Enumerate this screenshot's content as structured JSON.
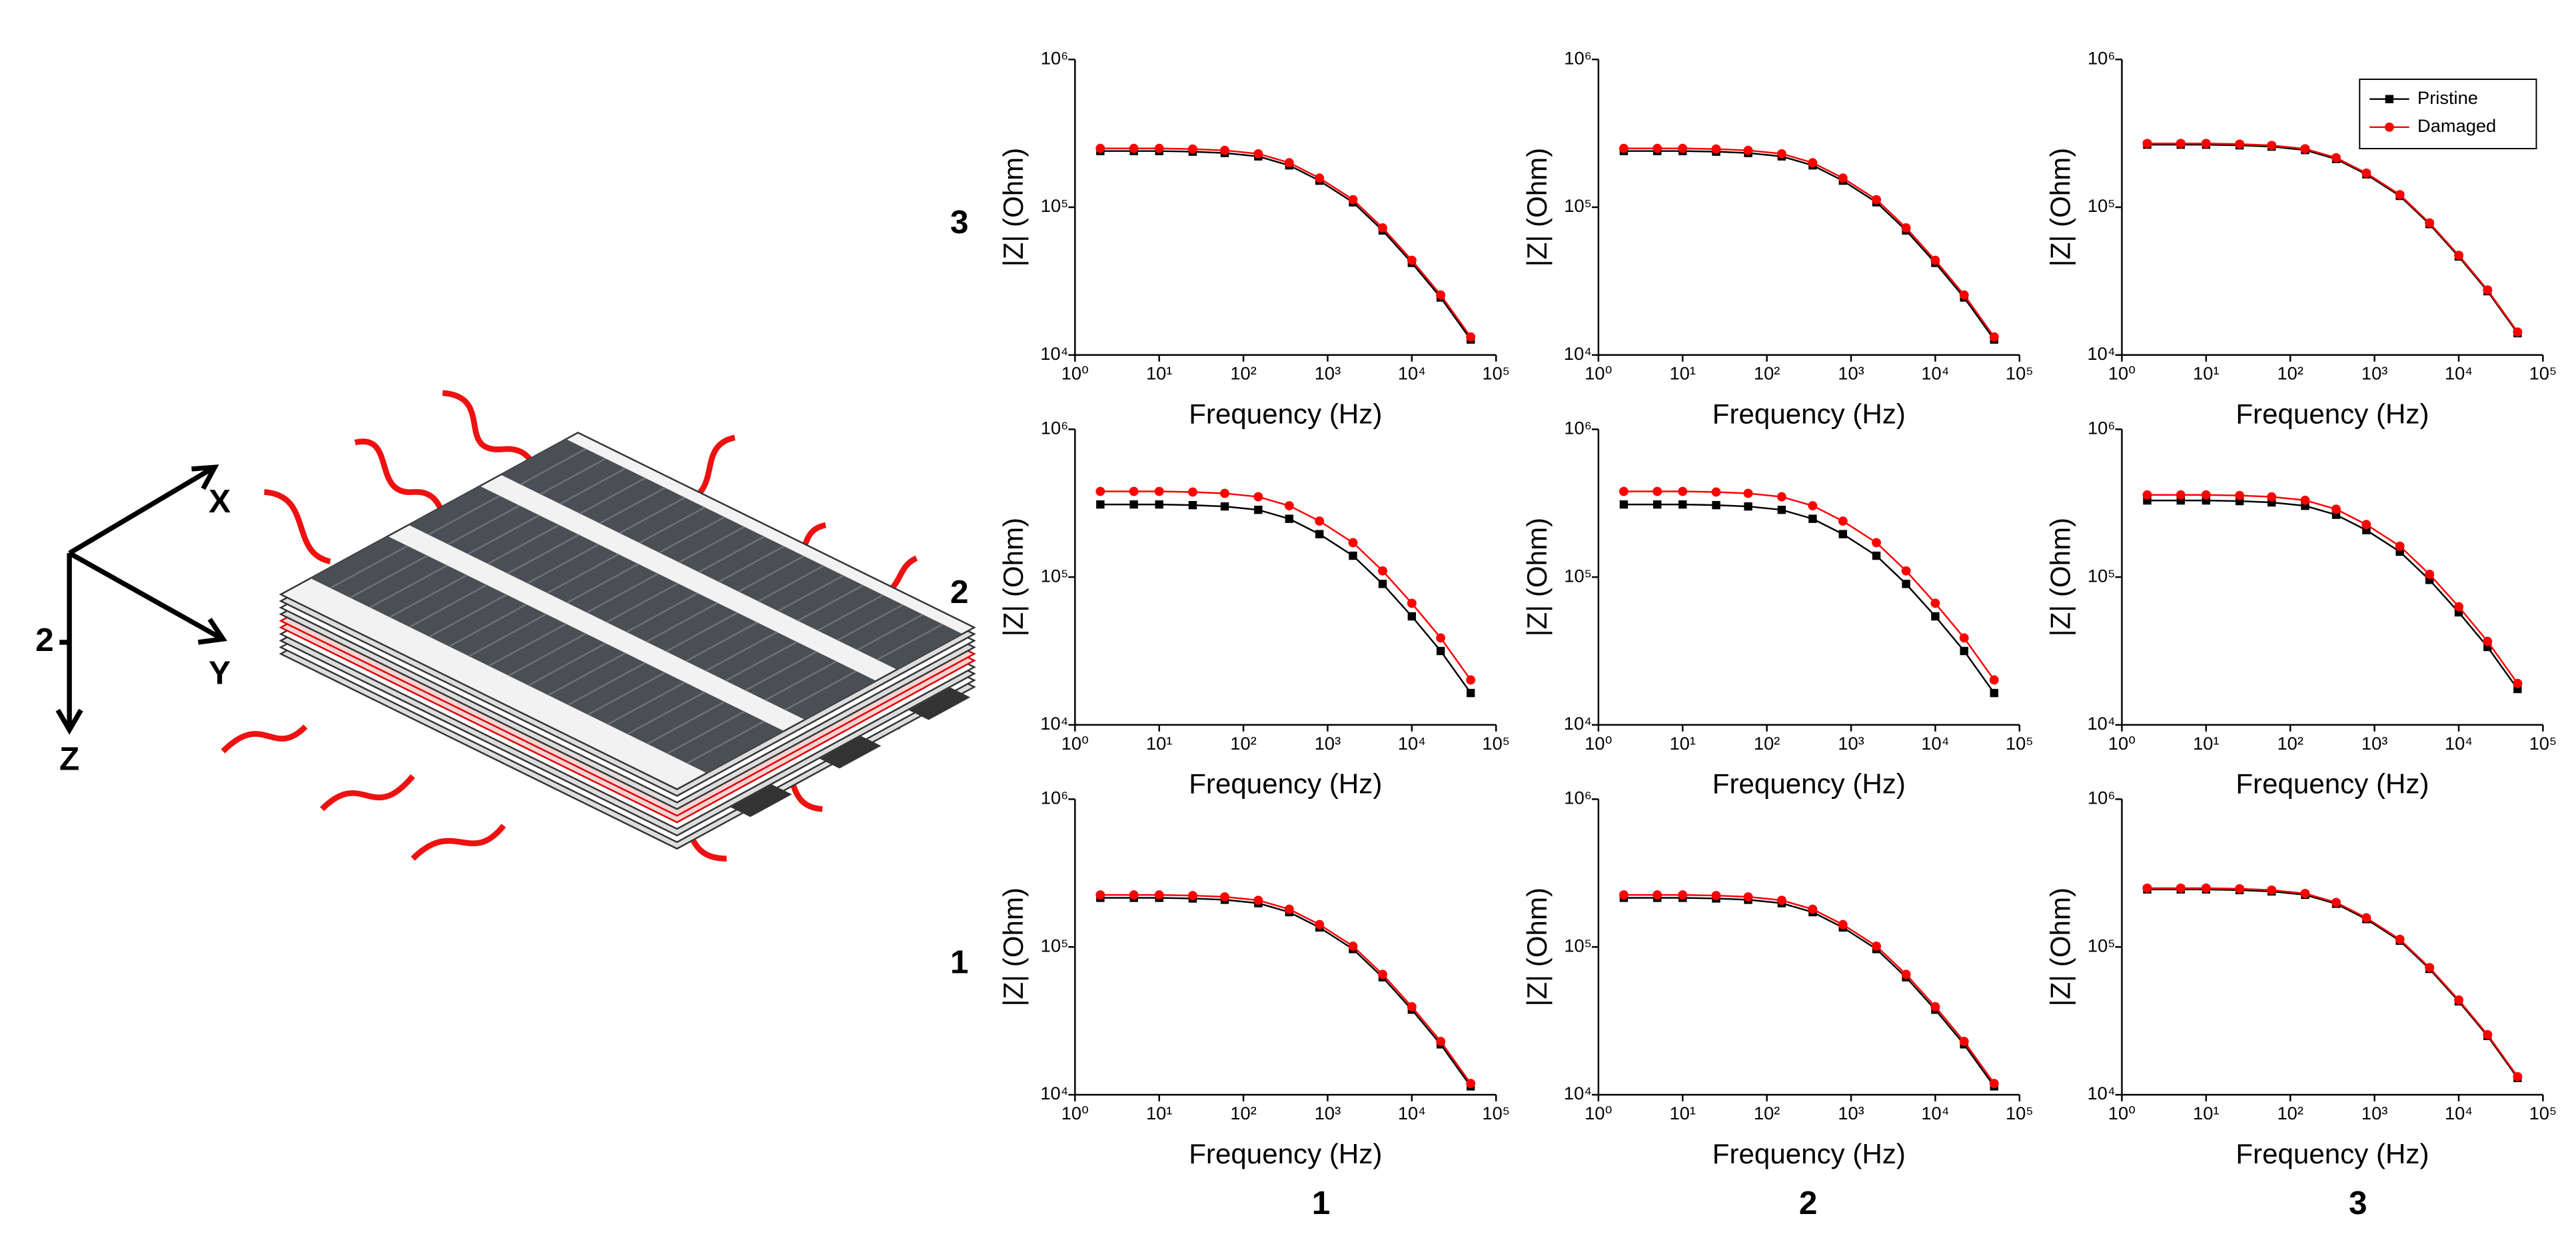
{
  "diagram": {
    "x_axis": "X",
    "y_axis": "Y",
    "z_axis": "Z",
    "marker": "2"
  },
  "row_labels": [
    "3",
    "2",
    "1"
  ],
  "column_labels": [
    "1",
    "2",
    "3"
  ],
  "chart_data": [
    {
      "type": "line",
      "xlabel": "Frequency (Hz)",
      "ylabel": "|Z| (Ohm)",
      "xscale": "log",
      "yscale": "log",
      "xlim": [
        1,
        100000
      ],
      "ylim": [
        10000,
        1000000
      ],
      "xticks": [
        {
          "value": 1,
          "label": "10⁰"
        },
        {
          "value": 10,
          "label": "10¹"
        },
        {
          "value": 100,
          "label": "10²"
        },
        {
          "value": 1000,
          "label": "10³"
        },
        {
          "value": 10000,
          "label": "10⁴"
        },
        {
          "value": 100000,
          "label": "10⁵"
        }
      ],
      "yticks": [
        {
          "value": 10000,
          "label": "10⁴"
        },
        {
          "value": 100000,
          "label": "10⁵"
        },
        {
          "value": 1000000,
          "label": "10⁶"
        }
      ],
      "x": [
        2,
        5,
        10,
        25,
        60,
        150,
        350,
        800,
        2000,
        4500,
        10000,
        22000,
        50000
      ],
      "series": [
        {
          "color": "#000000",
          "marker": "square",
          "values": [
            240000,
            240000,
            240000,
            237600,
            232800,
            220800,
            192000,
            151200,
            108000,
            69600,
            42000,
            24480,
            12720
          ]
        },
        {
          "color": "#ff0000",
          "marker": "circle",
          "values": [
            250000,
            250000,
            250000,
            247500,
            242500,
            230000,
            200000,
            157500,
            112500,
            72500,
            43750,
            25500,
            13250
          ]
        }
      ]
    },
    {
      "type": "line",
      "xlabel": "Frequency (Hz)",
      "ylabel": "|Z| (Ohm)",
      "xscale": "log",
      "yscale": "log",
      "xlim": [
        1,
        100000
      ],
      "ylim": [
        10000,
        1000000
      ],
      "xticks": [
        {
          "value": 1,
          "label": "10⁰"
        },
        {
          "value": 10,
          "label": "10¹"
        },
        {
          "value": 100,
          "label": "10²"
        },
        {
          "value": 1000,
          "label": "10³"
        },
        {
          "value": 10000,
          "label": "10⁴"
        },
        {
          "value": 100000,
          "label": "10⁵"
        }
      ],
      "yticks": [
        {
          "value": 10000,
          "label": "10⁴"
        },
        {
          "value": 100000,
          "label": "10⁵"
        },
        {
          "value": 1000000,
          "label": "10⁶"
        }
      ],
      "x": [
        2,
        5,
        10,
        25,
        60,
        150,
        350,
        800,
        2000,
        4500,
        10000,
        22000,
        50000
      ],
      "series": [
        {
          "color": "#000000",
          "marker": "square",
          "values": [
            240000,
            240000,
            240000,
            237600,
            232800,
            220800,
            192000,
            151200,
            108000,
            69600,
            42000,
            24480,
            12720
          ]
        },
        {
          "color": "#ff0000",
          "marker": "circle",
          "values": [
            250000,
            250000,
            250000,
            247500,
            242500,
            230000,
            200000,
            157500,
            112500,
            72500,
            43750,
            25500,
            13250
          ]
        }
      ]
    },
    {
      "type": "line",
      "xlabel": "Frequency (Hz)",
      "ylabel": "|Z| (Ohm)",
      "xscale": "log",
      "yscale": "log",
      "xlim": [
        1,
        100000
      ],
      "ylim": [
        10000,
        1000000
      ],
      "legend": "upper right",
      "xticks": [
        {
          "value": 1,
          "label": "10⁰"
        },
        {
          "value": 10,
          "label": "10¹"
        },
        {
          "value": 100,
          "label": "10²"
        },
        {
          "value": 1000,
          "label": "10³"
        },
        {
          "value": 10000,
          "label": "10⁴"
        },
        {
          "value": 100000,
          "label": "10⁵"
        }
      ],
      "yticks": [
        {
          "value": 10000,
          "label": "10⁴"
        },
        {
          "value": 100000,
          "label": "10⁵"
        },
        {
          "value": 1000000,
          "label": "10⁶"
        }
      ],
      "x": [
        2,
        5,
        10,
        25,
        60,
        150,
        350,
        800,
        2000,
        4500,
        10000,
        22000,
        50000
      ],
      "series": [
        {
          "name": "Pristine",
          "color": "#000000",
          "marker": "square",
          "values": [
            265000,
            265000,
            265000,
            262350,
            257050,
            243800,
            212000,
            166950,
            119250,
            76850,
            46375,
            27030,
            14045
          ]
        },
        {
          "name": "Damaged",
          "color": "#ff0000",
          "marker": "circle",
          "values": [
            270000,
            270000,
            270000,
            267300,
            261900,
            248400,
            216000,
            170100,
            121500,
            78300,
            47250,
            27540,
            14310
          ]
        }
      ]
    },
    {
      "type": "line",
      "xlabel": "Frequency (Hz)",
      "ylabel": "|Z| (Ohm)",
      "xscale": "log",
      "yscale": "log",
      "xlim": [
        1,
        100000
      ],
      "ylim": [
        10000,
        1000000
      ],
      "xticks": [
        {
          "value": 1,
          "label": "10⁰"
        },
        {
          "value": 10,
          "label": "10¹"
        },
        {
          "value": 100,
          "label": "10²"
        },
        {
          "value": 1000,
          "label": "10³"
        },
        {
          "value": 10000,
          "label": "10⁴"
        },
        {
          "value": 100000,
          "label": "10⁵"
        }
      ],
      "yticks": [
        {
          "value": 10000,
          "label": "10⁴"
        },
        {
          "value": 100000,
          "label": "10⁵"
        },
        {
          "value": 1000000,
          "label": "10⁶"
        }
      ],
      "x": [
        2,
        5,
        10,
        25,
        60,
        150,
        350,
        800,
        2000,
        4500,
        10000,
        22000,
        50000
      ],
      "series": [
        {
          "color": "#000000",
          "marker": "square",
          "values": [
            310000,
            310000,
            310000,
            306900,
            300700,
            285200,
            248000,
            195300,
            139500,
            89900,
            54250,
            31620,
            16430
          ]
        },
        {
          "color": "#ff0000",
          "marker": "circle",
          "values": [
            380000,
            380000,
            380000,
            376200,
            368600,
            349600,
            304000,
            239400,
            171000,
            110200,
            66500,
            38760,
            20140
          ]
        }
      ]
    },
    {
      "type": "line",
      "xlabel": "Frequency (Hz)",
      "ylabel": "|Z| (Ohm)",
      "xscale": "log",
      "yscale": "log",
      "xlim": [
        1,
        100000
      ],
      "ylim": [
        10000,
        1000000
      ],
      "xticks": [
        {
          "value": 1,
          "label": "10⁰"
        },
        {
          "value": 10,
          "label": "10¹"
        },
        {
          "value": 100,
          "label": "10²"
        },
        {
          "value": 1000,
          "label": "10³"
        },
        {
          "value": 10000,
          "label": "10⁴"
        },
        {
          "value": 100000,
          "label": "10⁵"
        }
      ],
      "yticks": [
        {
          "value": 10000,
          "label": "10⁴"
        },
        {
          "value": 100000,
          "label": "10⁵"
        },
        {
          "value": 1000000,
          "label": "10⁶"
        }
      ],
      "x": [
        2,
        5,
        10,
        25,
        60,
        150,
        350,
        800,
        2000,
        4500,
        10000,
        22000,
        50000
      ],
      "series": [
        {
          "color": "#000000",
          "marker": "square",
          "values": [
            310000,
            310000,
            310000,
            306900,
            300700,
            285200,
            248000,
            195300,
            139500,
            89900,
            54250,
            31620,
            16430
          ]
        },
        {
          "color": "#ff0000",
          "marker": "circle",
          "values": [
            380000,
            380000,
            380000,
            376200,
            368600,
            349600,
            304000,
            239400,
            171000,
            110200,
            66500,
            38760,
            20140
          ]
        }
      ]
    },
    {
      "type": "line",
      "xlabel": "Frequency (Hz)",
      "ylabel": "|Z| (Ohm)",
      "xscale": "log",
      "yscale": "log",
      "xlim": [
        1,
        100000
      ],
      "ylim": [
        10000,
        1000000
      ],
      "xticks": [
        {
          "value": 1,
          "label": "10⁰"
        },
        {
          "value": 10,
          "label": "10¹"
        },
        {
          "value": 100,
          "label": "10²"
        },
        {
          "value": 1000,
          "label": "10³"
        },
        {
          "value": 10000,
          "label": "10⁴"
        },
        {
          "value": 100000,
          "label": "10⁵"
        }
      ],
      "yticks": [
        {
          "value": 10000,
          "label": "10⁴"
        },
        {
          "value": 100000,
          "label": "10⁵"
        },
        {
          "value": 1000000,
          "label": "10⁶"
        }
      ],
      "x": [
        2,
        5,
        10,
        25,
        60,
        150,
        350,
        800,
        2000,
        4500,
        10000,
        22000,
        50000
      ],
      "series": [
        {
          "color": "#000000",
          "marker": "square",
          "values": [
            330000,
            330000,
            330000,
            326700,
            320100,
            303600,
            264000,
            207900,
            148500,
            95700,
            57750,
            33660,
            17490
          ]
        },
        {
          "color": "#ff0000",
          "marker": "circle",
          "values": [
            360000,
            360000,
            360000,
            356400,
            349200,
            331200,
            288000,
            226800,
            162000,
            104400,
            63000,
            36720,
            19080
          ]
        }
      ]
    },
    {
      "type": "line",
      "xlabel": "Frequency (Hz)",
      "ylabel": "|Z| (Ohm)",
      "xscale": "log",
      "yscale": "log",
      "xlim": [
        1,
        100000
      ],
      "ylim": [
        10000,
        1000000
      ],
      "xticks": [
        {
          "value": 1,
          "label": "10⁰"
        },
        {
          "value": 10,
          "label": "10¹"
        },
        {
          "value": 100,
          "label": "10²"
        },
        {
          "value": 1000,
          "label": "10³"
        },
        {
          "value": 10000,
          "label": "10⁴"
        },
        {
          "value": 100000,
          "label": "10⁵"
        }
      ],
      "yticks": [
        {
          "value": 10000,
          "label": "10⁴"
        },
        {
          "value": 100000,
          "label": "10⁵"
        },
        {
          "value": 1000000,
          "label": "10⁶"
        }
      ],
      "x": [
        2,
        5,
        10,
        25,
        60,
        150,
        350,
        800,
        2000,
        4500,
        10000,
        22000,
        50000
      ],
      "series": [
        {
          "color": "#000000",
          "marker": "square",
          "values": [
            215000,
            215000,
            215000,
            212850,
            208550,
            197800,
            172000,
            135450,
            96750,
            62350,
            37625,
            21930,
            11395
          ]
        },
        {
          "color": "#ff0000",
          "marker": "circle",
          "values": [
            225000,
            225000,
            225000,
            222750,
            218250,
            207000,
            180000,
            141750,
            101250,
            65250,
            39375,
            22950,
            11925
          ]
        }
      ]
    },
    {
      "type": "line",
      "xlabel": "Frequency (Hz)",
      "ylabel": "|Z| (Ohm)",
      "xscale": "log",
      "yscale": "log",
      "xlim": [
        1,
        100000
      ],
      "ylim": [
        10000,
        1000000
      ],
      "xticks": [
        {
          "value": 1,
          "label": "10⁰"
        },
        {
          "value": 10,
          "label": "10¹"
        },
        {
          "value": 100,
          "label": "10²"
        },
        {
          "value": 1000,
          "label": "10³"
        },
        {
          "value": 10000,
          "label": "10⁴"
        },
        {
          "value": 100000,
          "label": "10⁵"
        }
      ],
      "yticks": [
        {
          "value": 10000,
          "label": "10⁴"
        },
        {
          "value": 100000,
          "label": "10⁵"
        },
        {
          "value": 1000000,
          "label": "10⁶"
        }
      ],
      "x": [
        2,
        5,
        10,
        25,
        60,
        150,
        350,
        800,
        2000,
        4500,
        10000,
        22000,
        50000
      ],
      "series": [
        {
          "color": "#000000",
          "marker": "square",
          "values": [
            215000,
            215000,
            215000,
            212850,
            208550,
            197800,
            172000,
            135450,
            96750,
            62350,
            37625,
            21930,
            11395
          ]
        },
        {
          "color": "#ff0000",
          "marker": "circle",
          "values": [
            225000,
            225000,
            225000,
            222750,
            218250,
            207000,
            180000,
            141750,
            101250,
            65250,
            39375,
            22950,
            11925
          ]
        }
      ]
    },
    {
      "type": "line",
      "xlabel": "Frequency (Hz)",
      "ylabel": "|Z| (Ohm)",
      "xscale": "log",
      "yscale": "log",
      "xlim": [
        1,
        100000
      ],
      "ylim": [
        10000,
        1000000
      ],
      "xticks": [
        {
          "value": 1,
          "label": "10⁰"
        },
        {
          "value": 10,
          "label": "10¹"
        },
        {
          "value": 100,
          "label": "10²"
        },
        {
          "value": 1000,
          "label": "10³"
        },
        {
          "value": 10000,
          "label": "10⁴"
        },
        {
          "value": 100000,
          "label": "10⁵"
        }
      ],
      "yticks": [
        {
          "value": 10000,
          "label": "10⁴"
        },
        {
          "value": 100000,
          "label": "10⁵"
        },
        {
          "value": 1000000,
          "label": "10⁶"
        }
      ],
      "x": [
        2,
        5,
        10,
        25,
        60,
        150,
        350,
        800,
        2000,
        4500,
        10000,
        22000,
        50000
      ],
      "series": [
        {
          "color": "#000000",
          "marker": "square",
          "values": [
            245000,
            245000,
            245000,
            242550,
            237650,
            225400,
            196000,
            154350,
            110250,
            71050,
            42875,
            24990,
            12985
          ]
        },
        {
          "color": "#ff0000",
          "marker": "circle",
          "values": [
            250000,
            250000,
            250000,
            247500,
            242500,
            230000,
            200000,
            157500,
            112500,
            72500,
            43750,
            25500,
            13250
          ]
        }
      ]
    }
  ]
}
